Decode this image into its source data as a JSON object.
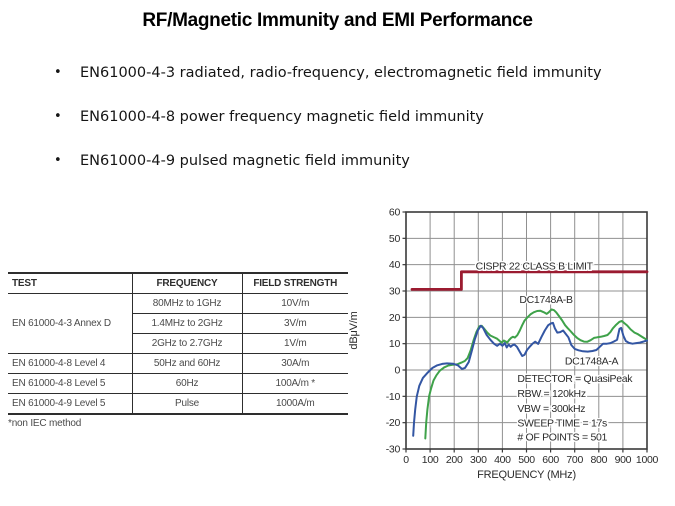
{
  "title": "RF/Magnetic Immunity and EMI Performance",
  "bullet_glyph": "•",
  "bullets": [
    "EN61000-4-3 radiated, radio-frequency, electromagnetic field immunity",
    "EN61000-4-8 power frequency magnetic field immunity",
    "EN61000-4-9 pulsed magnetic field immunity"
  ],
  "table": {
    "headers": [
      "TEST",
      "FREQUENCY",
      "FIELD STRENGTH"
    ],
    "rows": [
      {
        "test": "EN 61000-4-3 Annex D",
        "frequency": "80MHz to 1GHz",
        "field_strength": "10V/m"
      },
      {
        "test": "",
        "frequency": "1.4MHz to 2GHz",
        "field_strength": "3V/m"
      },
      {
        "test": "",
        "frequency": "2GHz to 2.7GHz",
        "field_strength": "1V/m"
      },
      {
        "test": "EN 61000-4-8 Level 4",
        "frequency": "50Hz and 60Hz",
        "field_strength": "30A/m"
      },
      {
        "test": "EN 61000-4-8 Level 5",
        "frequency": "60Hz",
        "field_strength": "100A/m *"
      },
      {
        "test": "EN 61000-4-9 Level 5",
        "frequency": "Pulse",
        "field_strength": "1000A/m"
      }
    ],
    "footnote": "*non IEC method"
  },
  "chart_data": {
    "type": "line",
    "title": "",
    "xlabel": "FREQUENCY (MHz)",
    "ylabel": "dBμV/m",
    "xlim": [
      0,
      1000
    ],
    "ylim": [
      -30,
      60
    ],
    "x_ticks": [
      0,
      100,
      200,
      300,
      400,
      500,
      600,
      700,
      800,
      900,
      1000
    ],
    "y_ticks": [
      60,
      50,
      40,
      30,
      20,
      10,
      0,
      -10,
      -20,
      -30
    ],
    "grid": true,
    "legend_position": "in-plot-labels",
    "colors": {
      "grid": "#909090",
      "frame": "#3a3a3a",
      "text": "#2b2b2b",
      "background": "#ffffff"
    },
    "series": [
      {
        "name": "CISPR 22 CLASS B LIMIT",
        "color": "#9b1b30",
        "width": 2.8,
        "points": [
          [
            25,
            30.6
          ],
          [
            230,
            30.6
          ],
          [
            230,
            37.3
          ],
          [
            1000,
            37.3
          ]
        ]
      },
      {
        "name": "DC1748A-B",
        "color": "#3fa24a",
        "width": 2,
        "points": [
          [
            80,
            -26
          ],
          [
            84,
            -20
          ],
          [
            89,
            -15
          ],
          [
            96,
            -10
          ],
          [
            104,
            -7
          ],
          [
            114,
            -4
          ],
          [
            126,
            -2
          ],
          [
            140,
            -0.3
          ],
          [
            158,
            1
          ],
          [
            176,
            1.7
          ],
          [
            195,
            2
          ],
          [
            214,
            2.2
          ],
          [
            230,
            2.8
          ],
          [
            244,
            3.4
          ],
          [
            256,
            4.6
          ],
          [
            268,
            7.4
          ],
          [
            280,
            11.2
          ],
          [
            292,
            14.4
          ],
          [
            304,
            16.6
          ],
          [
            314,
            16.8
          ],
          [
            324,
            15.7
          ],
          [
            336,
            14.3
          ],
          [
            350,
            13.1
          ],
          [
            364,
            12.5
          ],
          [
            378,
            11.9
          ],
          [
            390,
            10.9
          ],
          [
            398,
            10.4
          ],
          [
            406,
            11.2
          ],
          [
            414,
            10.8
          ],
          [
            420,
            10.4
          ],
          [
            428,
            11.4
          ],
          [
            436,
            12.2
          ],
          [
            444,
            12.6
          ],
          [
            452,
            12.3
          ],
          [
            462,
            13.2
          ],
          [
            472,
            15
          ],
          [
            482,
            17
          ],
          [
            492,
            18.8
          ],
          [
            504,
            20
          ],
          [
            516,
            21.1
          ],
          [
            530,
            21.9
          ],
          [
            544,
            22.4
          ],
          [
            558,
            22.5
          ],
          [
            572,
            21.9
          ],
          [
            584,
            21.3
          ],
          [
            592,
            21.9
          ],
          [
            604,
            23
          ],
          [
            614,
            22.7
          ],
          [
            624,
            21.8
          ],
          [
            636,
            20.3
          ],
          [
            648,
            18.8
          ],
          [
            660,
            17
          ],
          [
            670,
            16
          ],
          [
            682,
            14.8
          ],
          [
            696,
            13.4
          ],
          [
            710,
            12.2
          ],
          [
            724,
            11.3
          ],
          [
            738,
            10.8
          ],
          [
            752,
            10.7
          ],
          [
            766,
            11.3
          ],
          [
            780,
            12.2
          ],
          [
            794,
            12.4
          ],
          [
            808,
            12.6
          ],
          [
            822,
            12.9
          ],
          [
            836,
            13.3
          ],
          [
            848,
            14.4
          ],
          [
            858,
            15.8
          ],
          [
            872,
            17.2
          ],
          [
            886,
            18.3
          ],
          [
            896,
            18.6
          ],
          [
            906,
            17.8
          ],
          [
            918,
            16.9
          ],
          [
            932,
            15.4
          ],
          [
            948,
            14.2
          ],
          [
            960,
            13.7
          ],
          [
            974,
            12.9
          ],
          [
            988,
            12.1
          ],
          [
            1000,
            11.4
          ]
        ]
      },
      {
        "name": "DC1748A-A",
        "color": "#3356a3",
        "width": 2,
        "points": [
          [
            30,
            -25
          ],
          [
            33,
            -20
          ],
          [
            38,
            -15
          ],
          [
            45,
            -10
          ],
          [
            55,
            -6
          ],
          [
            70,
            -3
          ],
          [
            90,
            -1
          ],
          [
            110,
            0.8
          ],
          [
            130,
            1.8
          ],
          [
            150,
            2.3
          ],
          [
            170,
            2.5
          ],
          [
            195,
            2.4
          ],
          [
            215,
            1.8
          ],
          [
            232,
            0.4
          ],
          [
            245,
            0.8
          ],
          [
            260,
            3
          ],
          [
            272,
            7
          ],
          [
            285,
            11.5
          ],
          [
            298,
            15
          ],
          [
            310,
            16.8
          ],
          [
            320,
            16
          ],
          [
            335,
            13.3
          ],
          [
            350,
            11.5
          ],
          [
            365,
            10
          ],
          [
            378,
            9.2
          ],
          [
            390,
            10
          ],
          [
            400,
            9.2
          ],
          [
            410,
            10.2
          ],
          [
            418,
            8.6
          ],
          [
            426,
            9.7
          ],
          [
            434,
            8.8
          ],
          [
            442,
            9.4
          ],
          [
            450,
            9.7
          ],
          [
            460,
            8.8
          ],
          [
            470,
            7.2
          ],
          [
            482,
            5.3
          ],
          [
            492,
            5.8
          ],
          [
            502,
            7.6
          ],
          [
            512,
            8.7
          ],
          [
            524,
            9.9
          ],
          [
            536,
            10.8
          ],
          [
            548,
            9.9
          ],
          [
            562,
            12.5
          ],
          [
            576,
            15
          ],
          [
            590,
            17
          ],
          [
            602,
            17.7
          ],
          [
            610,
            17.9
          ],
          [
            618,
            15.8
          ],
          [
            628,
            14.2
          ],
          [
            640,
            14.4
          ],
          [
            652,
            15
          ],
          [
            664,
            13.6
          ],
          [
            674,
            12.4
          ],
          [
            686,
            9.5
          ],
          [
            700,
            8
          ],
          [
            716,
            7.5
          ],
          [
            734,
            7.1
          ],
          [
            754,
            7
          ],
          [
            774,
            7.2
          ],
          [
            790,
            7.6
          ],
          [
            804,
            8.8
          ],
          [
            818,
            10
          ],
          [
            834,
            10
          ],
          [
            848,
            10.2
          ],
          [
            862,
            10.8
          ],
          [
            876,
            11.5
          ],
          [
            886,
            15.6
          ],
          [
            893,
            16
          ],
          [
            902,
            13
          ],
          [
            912,
            11
          ],
          [
            925,
            10.3
          ],
          [
            940,
            10
          ],
          [
            955,
            10.2
          ],
          [
            970,
            10.4
          ],
          [
            985,
            10.8
          ],
          [
            1000,
            11.2
          ]
        ]
      }
    ],
    "annotations": [
      {
        "text": "CISPR 22 CLASS B LIMIT",
        "x": 532,
        "y": 38.2,
        "align": "middle"
      },
      {
        "text": "DC1748A-B",
        "x": 581,
        "y": 25.4,
        "align": "middle"
      },
      {
        "text": "DC1748A-A",
        "x": 770,
        "y": 2.0,
        "align": "middle"
      },
      {
        "text": "DETECTOR = QuasiPeak",
        "x": 462,
        "y": -4.6,
        "align": "start"
      },
      {
        "text": "RBW = 120kHz",
        "x": 462,
        "y": -10.3,
        "align": "start"
      },
      {
        "text": "VBW = 300kHz",
        "x": 462,
        "y": -16.0,
        "align": "start"
      },
      {
        "text": "SWEEP TIME = 17s",
        "x": 462,
        "y": -21.4,
        "align": "start"
      },
      {
        "text": "# OF POINTS = 501",
        "x": 462,
        "y": -26.7,
        "align": "start"
      }
    ]
  }
}
